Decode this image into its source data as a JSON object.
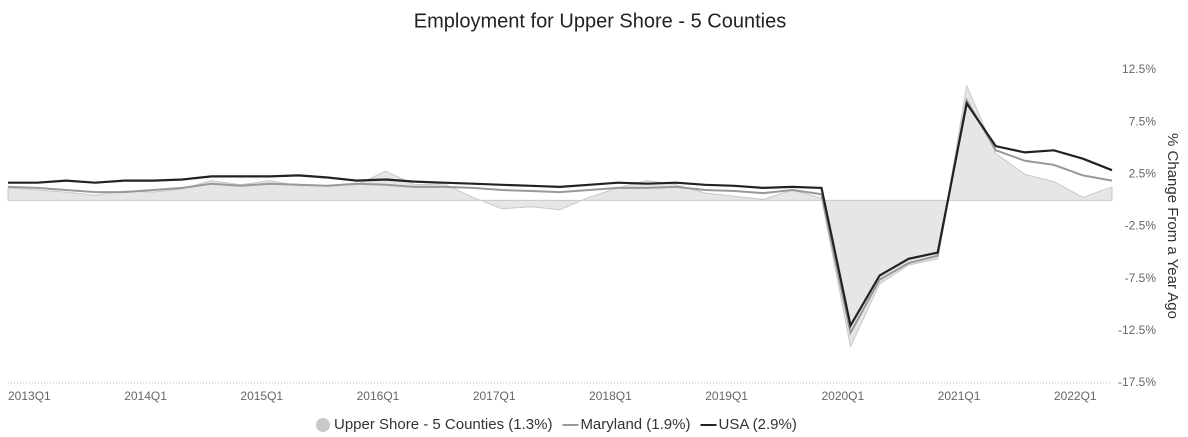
{
  "chart_data": {
    "type": "line",
    "title": "Employment for Upper Shore - 5 Counties",
    "y_label": "% Change From a Year Ago",
    "categories": [
      "2013Q1",
      null,
      null,
      null,
      "2014Q1",
      null,
      null,
      null,
      "2015Q1",
      null,
      null,
      null,
      "2016Q1",
      null,
      null,
      null,
      "2017Q1",
      null,
      null,
      null,
      "2018Q1",
      null,
      null,
      null,
      "2019Q1",
      null,
      null,
      null,
      "2020Q1",
      null,
      null,
      null,
      "2021Q1",
      null,
      null,
      null,
      "2022Q1",
      null,
      null
    ],
    "series": [
      {
        "name": "Upper Shore - 5 Counties (1.3%)",
        "color": "#c8c8c8",
        "area": true,
        "values": [
          1.2,
          1.0,
          0.8,
          0.5,
          0.9,
          0.8,
          1.1,
          1.9,
          1.5,
          1.9,
          1.4,
          1.4,
          1.5,
          2.8,
          1.5,
          1.6,
          0.3,
          -0.8,
          -0.6,
          -0.9,
          0.3,
          1.2,
          1.9,
          1.5,
          0.7,
          0.4,
          0.1,
          1.0,
          0.2,
          -14.0,
          -8.0,
          -6.2,
          -5.6,
          11.0,
          4.5,
          2.5,
          1.8,
          0.3,
          1.3
        ]
      },
      {
        "name": "Maryland (1.9%)",
        "color": "#999999",
        "values": [
          1.3,
          1.2,
          1.0,
          0.8,
          0.8,
          1.0,
          1.2,
          1.6,
          1.4,
          1.6,
          1.5,
          1.4,
          1.6,
          1.5,
          1.3,
          1.3,
          1.2,
          1.0,
          0.9,
          0.8,
          1.0,
          1.2,
          1.2,
          1.3,
          1.0,
          0.9,
          0.7,
          1.0,
          0.6,
          -12.7,
          -7.6,
          -6.0,
          -5.3,
          9.6,
          4.8,
          3.8,
          3.4,
          2.4,
          1.9
        ]
      },
      {
        "name": "USA (2.9%)",
        "color": "#222222",
        "values": [
          1.7,
          1.7,
          1.9,
          1.7,
          1.9,
          1.9,
          2.0,
          2.3,
          2.3,
          2.3,
          2.4,
          2.2,
          1.9,
          2.0,
          1.8,
          1.7,
          1.6,
          1.5,
          1.4,
          1.3,
          1.5,
          1.7,
          1.6,
          1.7,
          1.5,
          1.4,
          1.2,
          1.3,
          1.2,
          -12.0,
          -7.2,
          -5.6,
          -5.0,
          9.3,
          5.2,
          4.6,
          4.8,
          4.0,
          2.9
        ]
      }
    ],
    "ylim": [
      -17.5,
      12.5
    ],
    "yticks": [
      {
        "value": 12.5,
        "label": "12.5%"
      },
      {
        "value": 7.5,
        "label": "7.5%"
      },
      {
        "value": 2.5,
        "label": "2.5%"
      },
      {
        "value": -2.5,
        "label": "-2.5%"
      },
      {
        "value": -7.5,
        "label": "-7.5%"
      },
      {
        "value": -12.5,
        "label": "-12.5%"
      },
      {
        "value": -17.5,
        "label": "-17.5%"
      }
    ],
    "legend": "bottom"
  }
}
